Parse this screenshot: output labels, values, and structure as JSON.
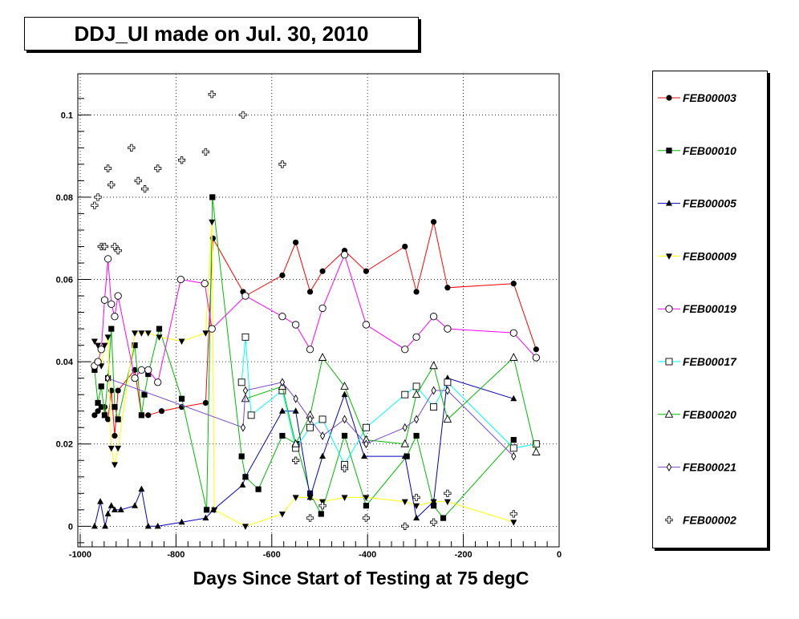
{
  "title": "DDJ_UI made on Jul. 30, 2010",
  "chart_data": {
    "type": "line",
    "title": "DDJ_UI made on Jul. 30, 2010",
    "xlabel": "Days Since Start of Testing at 75 degC",
    "ylabel": "",
    "xlim": [
      -1005,
      0
    ],
    "ylim": [
      -0.005,
      0.11
    ],
    "grid": true,
    "legend_placement": "right",
    "x_ticks": [
      -1000,
      -800,
      -600,
      -400,
      -200,
      0
    ],
    "x_tick_labels": [
      "-1000",
      "-800",
      "-600",
      "-400",
      "-200",
      "0"
    ],
    "y_ticks": [
      0,
      0.02,
      0.04,
      0.06,
      0.08,
      0.1
    ],
    "y_tick_labels": [
      "0",
      "0.02",
      "0.04",
      "0.06",
      "0.08",
      "0.1"
    ],
    "series": [
      {
        "name": "FEB00003",
        "color": "#ff0000",
        "marker": "filled-circle",
        "line": true,
        "points": [
          [
            -970,
            0.027
          ],
          [
            -963,
            0.028
          ],
          [
            -956,
            0.029
          ],
          [
            -949,
            0.029
          ],
          [
            -942,
            0.026
          ],
          [
            -935,
            0.033
          ],
          [
            -928,
            0.022
          ],
          [
            -921,
            0.033
          ],
          [
            -886,
            0.038
          ],
          [
            -872,
            0.027
          ],
          [
            -858,
            0.027
          ],
          [
            -830,
            0.028
          ],
          [
            -788,
            0.029
          ],
          [
            -738,
            0.03
          ],
          [
            -723,
            0.07
          ],
          [
            -660,
            0.057
          ],
          [
            -655,
            0.056
          ],
          [
            -578,
            0.061
          ],
          [
            -550,
            0.069
          ],
          [
            -520,
            0.057
          ],
          [
            -494,
            0.062
          ],
          [
            -448,
            0.067
          ],
          [
            -403,
            0.062
          ],
          [
            -322,
            0.068
          ],
          [
            -298,
            0.057
          ],
          [
            -262,
            0.074
          ],
          [
            -233,
            0.058
          ],
          [
            -95,
            0.059
          ],
          [
            -48,
            0.043
          ]
        ]
      },
      {
        "name": "FEB00010",
        "color": "#00bb00",
        "marker": "filled-square",
        "line": true,
        "points": [
          [
            -970,
            0.038
          ],
          [
            -963,
            0.03
          ],
          [
            -956,
            0.034
          ],
          [
            -949,
            0.027
          ],
          [
            -942,
            0.036
          ],
          [
            -935,
            0.048
          ],
          [
            -928,
            0.029
          ],
          [
            -921,
            0.026
          ],
          [
            -886,
            0.044
          ],
          [
            -872,
            0.027
          ],
          [
            -866,
            0.032
          ],
          [
            -858,
            0.037
          ],
          [
            -835,
            0.048
          ],
          [
            -788,
            0.031
          ],
          [
            -736,
            0.004
          ],
          [
            -724,
            0.08
          ],
          [
            -663,
            0.017
          ],
          [
            -655,
            0.012
          ],
          [
            -628,
            0.009
          ],
          [
            -578,
            0.022
          ],
          [
            -548,
            0.02
          ],
          [
            -520,
            0.008
          ],
          [
            -497,
            0.003
          ],
          [
            -448,
            0.022
          ],
          [
            -403,
            0.005
          ],
          [
            -318,
            0.017
          ],
          [
            -298,
            0.022
          ],
          [
            -262,
            0.005
          ],
          [
            -242,
            0.002
          ],
          [
            -95,
            0.021
          ]
        ]
      },
      {
        "name": "FEB00005",
        "color": "#0000bb",
        "marker": "filled-triangle",
        "line": true,
        "points": [
          [
            -970,
            0.0
          ],
          [
            -958,
            0.006
          ],
          [
            -948,
            0.0
          ],
          [
            -942,
            0.003
          ],
          [
            -935,
            0.005
          ],
          [
            -928,
            0.004
          ],
          [
            -915,
            0.004
          ],
          [
            -886,
            0.005
          ],
          [
            -872,
            0.009
          ],
          [
            -858,
            0.0
          ],
          [
            -838,
            0.0
          ],
          [
            -788,
            0.001
          ],
          [
            -738,
            0.002
          ],
          [
            -722,
            0.004
          ],
          [
            -661,
            0.01
          ],
          [
            -655,
            0.012
          ],
          [
            -578,
            0.028
          ],
          [
            -550,
            0.028
          ],
          [
            -520,
            0.007
          ],
          [
            -494,
            0.017
          ],
          [
            -448,
            0.032
          ],
          [
            -407,
            0.017
          ],
          [
            -322,
            0.017
          ],
          [
            -298,
            0.002
          ],
          [
            -262,
            0.006
          ],
          [
            -233,
            0.036
          ],
          [
            -95,
            0.031
          ]
        ]
      },
      {
        "name": "FEB00009",
        "color": "#ffff00",
        "marker": "filled-triangle-down",
        "line": true,
        "points": [
          [
            -970,
            0.045
          ],
          [
            -963,
            0.044
          ],
          [
            -956,
            0.039
          ],
          [
            -949,
            0.044
          ],
          [
            -942,
            0.046
          ],
          [
            -935,
            0.019
          ],
          [
            -928,
            0.015
          ],
          [
            -921,
            0.019
          ],
          [
            -886,
            0.047
          ],
          [
            -872,
            0.047
          ],
          [
            -858,
            0.047
          ],
          [
            -835,
            0.046
          ],
          [
            -788,
            0.045
          ],
          [
            -738,
            0.047
          ],
          [
            -725,
            0.074
          ],
          [
            -720,
            0.004
          ],
          [
            -655,
            0.0
          ],
          [
            -578,
            0.003
          ],
          [
            -550,
            0.007
          ],
          [
            -520,
            0.007
          ],
          [
            -494,
            0.006
          ],
          [
            -448,
            0.007
          ],
          [
            -403,
            0.007
          ],
          [
            -322,
            0.006
          ],
          [
            -298,
            0.005
          ],
          [
            -262,
            0.006
          ],
          [
            -233,
            0.006
          ],
          [
            -95,
            0.001
          ]
        ]
      },
      {
        "name": "FEB00019",
        "color": "#ff00ff",
        "marker": "open-circle",
        "line": true,
        "points": [
          [
            -970,
            0.039
          ],
          [
            -963,
            0.04
          ],
          [
            -956,
            0.043
          ],
          [
            -949,
            0.055
          ],
          [
            -942,
            0.065
          ],
          [
            -935,
            0.054
          ],
          [
            -928,
            0.051
          ],
          [
            -921,
            0.056
          ],
          [
            -886,
            0.036
          ],
          [
            -872,
            0.038
          ],
          [
            -858,
            0.038
          ],
          [
            -838,
            0.035
          ],
          [
            -790,
            0.06
          ],
          [
            -740,
            0.059
          ],
          [
            -725,
            0.048
          ],
          [
            -655,
            0.056
          ],
          [
            -578,
            0.051
          ],
          [
            -550,
            0.049
          ],
          [
            -520,
            0.043
          ],
          [
            -494,
            0.053
          ],
          [
            -448,
            0.066
          ],
          [
            -403,
            0.049
          ],
          [
            -322,
            0.043
          ],
          [
            -298,
            0.046
          ],
          [
            -262,
            0.051
          ],
          [
            -233,
            0.048
          ],
          [
            -95,
            0.047
          ],
          [
            -48,
            0.041
          ]
        ]
      },
      {
        "name": "FEB00017",
        "color": "#00ffff",
        "marker": "open-square",
        "line": true,
        "points": [
          [
            -663,
            0.035
          ],
          [
            -655,
            0.046
          ],
          [
            -643,
            0.027
          ],
          [
            -578,
            0.033
          ],
          [
            -550,
            0.019
          ],
          [
            -520,
            0.024
          ],
          [
            -494,
            0.026
          ],
          [
            -448,
            0.015
          ],
          [
            -403,
            0.024
          ],
          [
            -322,
            0.032
          ],
          [
            -298,
            0.034
          ],
          [
            -262,
            0.029
          ],
          [
            -233,
            0.035
          ],
          [
            -95,
            0.019
          ],
          [
            -48,
            0.02
          ]
        ]
      },
      {
        "name": "FEB00020",
        "color": "#00bb00",
        "marker": "open-triangle",
        "line": true,
        "points": [
          [
            -655,
            0.031
          ],
          [
            -578,
            0.034
          ],
          [
            -550,
            0.02
          ],
          [
            -520,
            0.027
          ],
          [
            -494,
            0.041
          ],
          [
            -448,
            0.034
          ],
          [
            -403,
            0.021
          ],
          [
            -322,
            0.02
          ],
          [
            -298,
            0.032
          ],
          [
            -262,
            0.039
          ],
          [
            -233,
            0.026
          ],
          [
            -95,
            0.041
          ],
          [
            -48,
            0.018
          ]
        ]
      },
      {
        "name": "FEB00021",
        "color": "#7744cc",
        "marker": "open-diamond",
        "line": true,
        "points": [
          [
            -943,
            0.036
          ],
          [
            -660,
            0.024
          ],
          [
            -655,
            0.033
          ],
          [
            -578,
            0.035
          ],
          [
            -550,
            0.031
          ],
          [
            -520,
            0.026
          ],
          [
            -494,
            0.022
          ],
          [
            -448,
            0.026
          ],
          [
            -403,
            0.02
          ],
          [
            -322,
            0.024
          ],
          [
            -298,
            0.026
          ],
          [
            -262,
            0.033
          ],
          [
            -233,
            0.033
          ],
          [
            -95,
            0.017
          ]
        ]
      },
      {
        "name": "FEB00002",
        "color": "#000000",
        "marker": "open-cross",
        "line": false,
        "points": [
          [
            -970,
            0.078
          ],
          [
            -963,
            0.08
          ],
          [
            -956,
            0.068
          ],
          [
            -949,
            0.068
          ],
          [
            -942,
            0.087
          ],
          [
            -935,
            0.083
          ],
          [
            -928,
            0.068
          ],
          [
            -921,
            0.067
          ],
          [
            -893,
            0.092
          ],
          [
            -879,
            0.084
          ],
          [
            -865,
            0.082
          ],
          [
            -838,
            0.087
          ],
          [
            -788,
            0.089
          ],
          [
            -738,
            0.091
          ],
          [
            -725,
            0.105
          ],
          [
            -660,
            0.1
          ],
          [
            -578,
            0.088
          ],
          [
            -550,
            0.016
          ],
          [
            -520,
            0.002
          ],
          [
            -494,
            0.005
          ],
          [
            -448,
            0.014
          ],
          [
            -403,
            0.002
          ],
          [
            -322,
            0.0
          ],
          [
            -298,
            0.007
          ],
          [
            -262,
            0.001
          ],
          [
            -233,
            0.008
          ],
          [
            -95,
            0.003
          ]
        ]
      }
    ]
  }
}
